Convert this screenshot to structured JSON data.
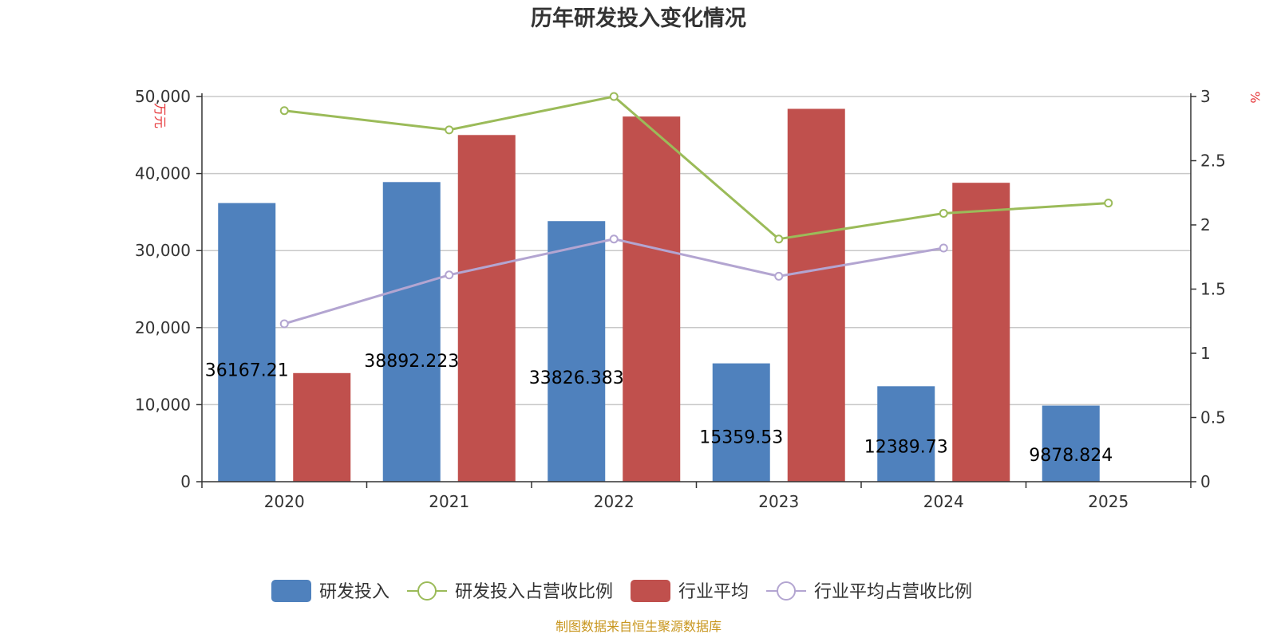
{
  "chart_data": {
    "type": "bar",
    "title": "历年研发投入变化情况",
    "categories": [
      "2020",
      "2021",
      "2022",
      "2023",
      "2024",
      "2025"
    ],
    "y_left": {
      "unit": "万元",
      "ylim": [
        0,
        50000
      ],
      "ticks": [
        "0",
        "10,000",
        "20,000",
        "30,000",
        "40,000",
        "50,000"
      ]
    },
    "y_right": {
      "unit": "%",
      "ylim": [
        0,
        3
      ],
      "ticks": [
        "0",
        "0.5",
        "1",
        "1.5",
        "2",
        "2.5",
        "3"
      ]
    },
    "series": [
      {
        "name": "研发投入",
        "type": "bar",
        "axis": "left",
        "color": "#4f81bd",
        "values": [
          36167.21,
          38892.223,
          33826.383,
          15359.53,
          12389.73,
          9878.824
        ],
        "labels": [
          "36167.21",
          "38892.223",
          "33826.383",
          "15359.53",
          "12389.73",
          "9878.824"
        ]
      },
      {
        "name": "研发投入占营收比例",
        "type": "line",
        "axis": "right",
        "color": "#9bbb59",
        "values": [
          2.89,
          2.74,
          3.0,
          1.89,
          2.09,
          2.17
        ]
      },
      {
        "name": "行业平均",
        "type": "bar",
        "axis": "left",
        "color": "#c0504d",
        "values": [
          14100,
          45000,
          47400,
          48400,
          38800,
          null
        ]
      },
      {
        "name": "行业平均占营收比例",
        "type": "line",
        "axis": "right",
        "color": "#b3a5d1",
        "values": [
          1.23,
          1.61,
          1.89,
          1.6,
          1.82,
          null
        ]
      }
    ],
    "grid": true,
    "legend_position": "bottom"
  },
  "footer": {
    "source": "制图数据来自恒生聚源数据库"
  }
}
